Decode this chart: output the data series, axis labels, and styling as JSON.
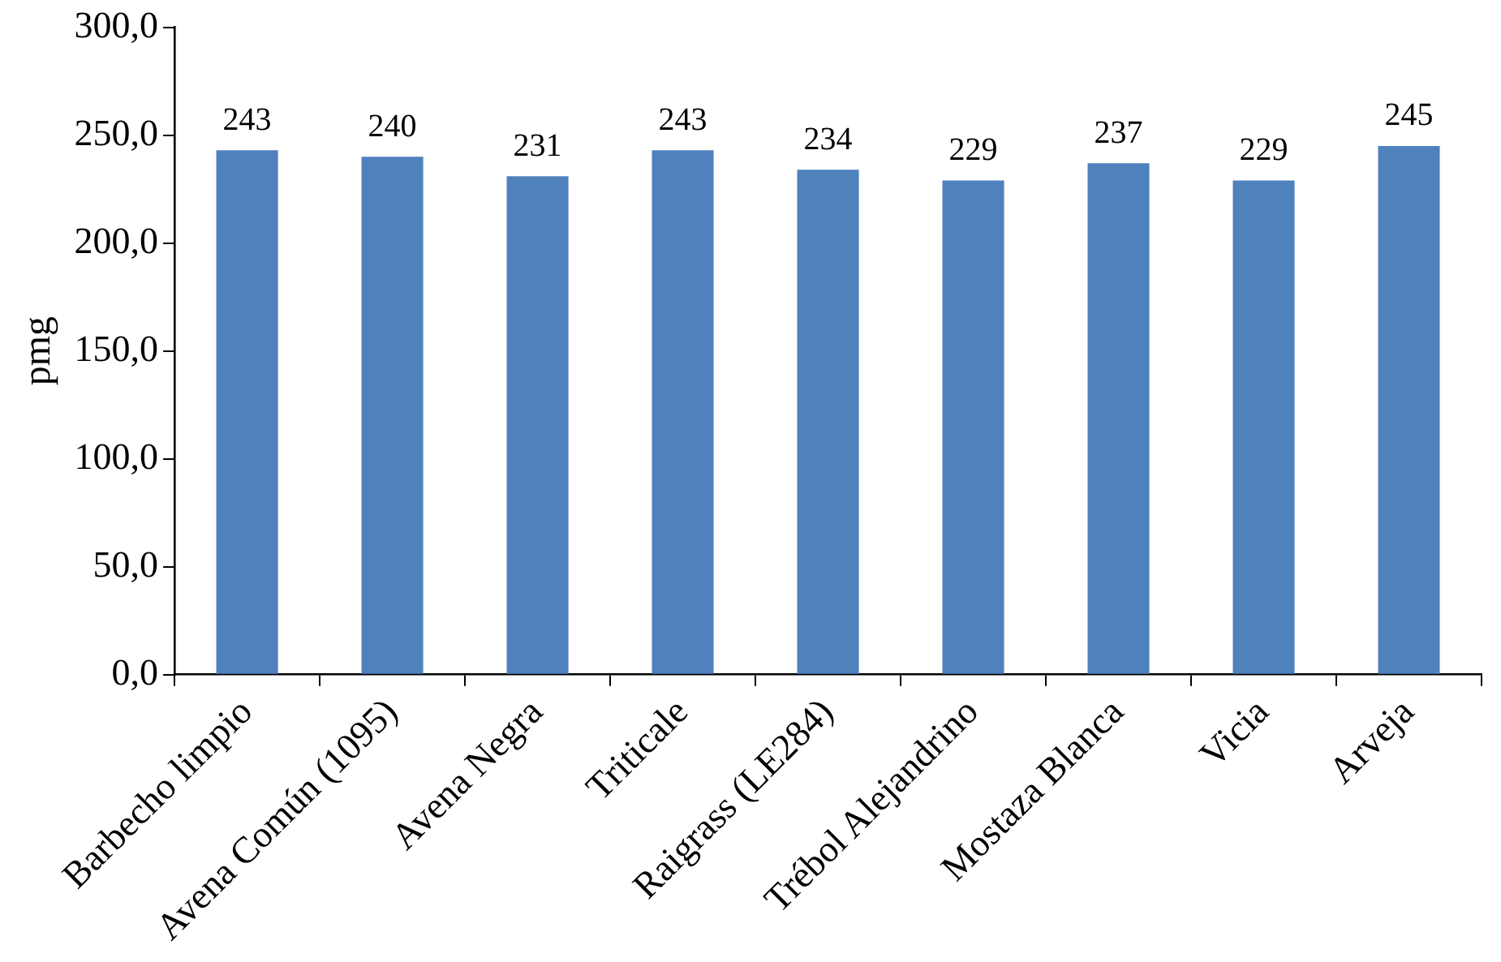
{
  "chart_data": {
    "type": "bar",
    "ylabel": "pmg",
    "categories": [
      "Barbecho limpio",
      "Avena Común (1095)",
      "Avena Negra",
      "Triticale",
      "Raigrass (LE284)",
      "Trébol Alejandrino",
      "Mostaza Blanca",
      "Vicia",
      "Arveja"
    ],
    "values": [
      243,
      240,
      231,
      243,
      234,
      229,
      237,
      229,
      245
    ],
    "color": "#4f81bd",
    "ylim": [
      0,
      300
    ],
    "yticks": [
      {
        "value": 0,
        "label": "0,0"
      },
      {
        "value": 50,
        "label": "50,0"
      },
      {
        "value": 100,
        "label": "100,0"
      },
      {
        "value": 150,
        "label": "150,0"
      },
      {
        "value": 200,
        "label": "200,0"
      },
      {
        "value": 250,
        "label": "250,0"
      },
      {
        "value": 300,
        "label": "300,0"
      }
    ],
    "data_labels": true,
    "grid": false,
    "legend": false
  }
}
